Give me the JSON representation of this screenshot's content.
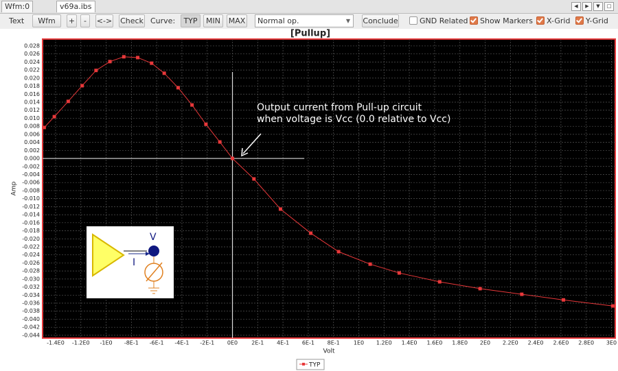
{
  "tabs": [
    "Wfm:0",
    "v69a.ibs"
  ],
  "toolbar": {
    "text_label": "Text",
    "buttons": [
      "Wfm",
      "+",
      "-",
      "<->",
      "Check"
    ],
    "curve_label": "Curve:",
    "curve_buttons": [
      "TYP",
      "MIN",
      "MAX"
    ],
    "mode": "Normal op.",
    "conclude": "Conclude",
    "checkboxes": [
      {
        "label": "GND Related",
        "checked": false
      },
      {
        "label": "Show Markers",
        "checked": true
      },
      {
        "label": "X-Grid",
        "checked": true
      },
      {
        "label": "Y-Grid",
        "checked": true
      }
    ]
  },
  "chart_data": {
    "type": "line",
    "title": "[Pullup]",
    "x_label": "Volt",
    "y_label": "Amp",
    "annotations": [
      "Output current from Pull-up circuit",
      "when voltage is Vcc (0.0 relative to Vcc)"
    ],
    "inset": {
      "voltage_label": "V",
      "current_label": "I"
    },
    "xlim": [
      -1.503,
      3.03
    ],
    "ylim": [
      -0.0447,
      0.0297
    ],
    "xticks": [
      {
        "value": -1.4,
        "label": "-1.4E0"
      },
      {
        "value": -1.2,
        "label": "-1.2E0"
      },
      {
        "value": -1.0,
        "label": "-1E0"
      },
      {
        "value": -0.8,
        "label": "-8E-1"
      },
      {
        "value": -0.6,
        "label": "-6E-1"
      },
      {
        "value": -0.4,
        "label": "-4E-1"
      },
      {
        "value": -0.2,
        "label": "-2E-1"
      },
      {
        "value": 0,
        "label": "0E0"
      },
      {
        "value": 0.2,
        "label": "2E-1"
      },
      {
        "value": 0.4,
        "label": "4E-1"
      },
      {
        "value": 0.6,
        "label": "6E-1"
      },
      {
        "value": 0.8,
        "label": "8E-1"
      },
      {
        "value": 1.0,
        "label": "1E0"
      },
      {
        "value": 1.2,
        "label": "1.2E0"
      },
      {
        "value": 1.4,
        "label": "1.4E0"
      },
      {
        "value": 1.6,
        "label": "1.6E0"
      },
      {
        "value": 1.8,
        "label": "1.8E0"
      },
      {
        "value": 2.0,
        "label": "2E0"
      },
      {
        "value": 2.2,
        "label": "2.2E0"
      },
      {
        "value": 2.4,
        "label": "2.4E0"
      },
      {
        "value": 2.6,
        "label": "2.6E0"
      },
      {
        "value": 2.8,
        "label": "2.8E0"
      },
      {
        "value": 3.0,
        "label": "3E0"
      }
    ],
    "yticks": [
      0.028,
      0.026,
      0.024,
      0.022,
      {
        "value": 0.02,
        "label": "0.020"
      },
      0.018,
      0.016,
      0.014,
      0.012,
      {
        "value": 0.01,
        "label": "0.010"
      },
      0.008,
      0.006,
      0.004,
      0.002,
      {
        "value": 0,
        "label": "0.000"
      },
      -0.002,
      -0.004,
      -0.006,
      -0.008,
      {
        "value": -0.01,
        "label": "-0.010"
      },
      -0.012,
      -0.014,
      -0.016,
      -0.018,
      {
        "value": -0.02,
        "label": "-0.020"
      },
      -0.022,
      -0.024,
      -0.026,
      -0.028,
      {
        "value": -0.03,
        "label": "-0.030"
      },
      -0.032,
      -0.034,
      -0.036,
      -0.038,
      {
        "value": -0.04,
        "label": "-0.040"
      },
      -0.042,
      -0.044
    ],
    "x_grid": true,
    "y_grid": true,
    "show_markers": true,
    "x": [
      -1.49,
      -1.41,
      -1.3,
      -1.19,
      -1.08,
      -0.97,
      -0.86,
      -0.75,
      -0.64,
      -0.54,
      -0.43,
      -0.32,
      -0.21,
      -0.1,
      0,
      0.17,
      0.38,
      0.62,
      0.84,
      1.09,
      1.32,
      1.64,
      1.96,
      2.29,
      2.62,
      3.01
    ],
    "series": [
      {
        "name": "TYP",
        "color": "#e8383a",
        "values": [
          0.0077,
          0.0104,
          0.0142,
          0.0181,
          0.0219,
          0.0241,
          0.0253,
          0.0251,
          0.0237,
          0.0212,
          0.0176,
          0.0133,
          0.0085,
          0.0041,
          0,
          -0.0051,
          -0.0126,
          -0.0186,
          -0.0232,
          -0.0263,
          -0.0285,
          -0.0307,
          -0.0324,
          -0.0338,
          -0.0352,
          -0.0367
        ]
      }
    ]
  }
}
